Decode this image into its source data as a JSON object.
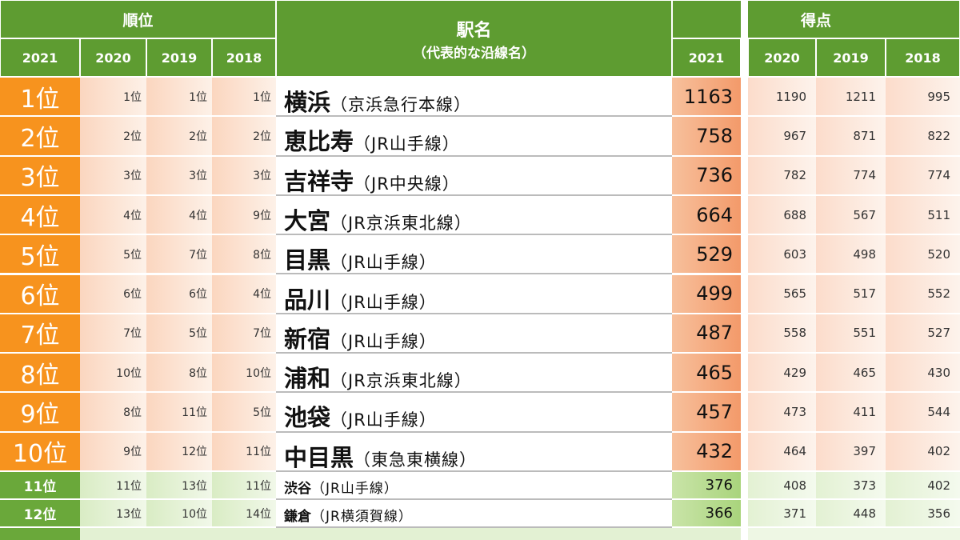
{
  "header": {
    "rank": "順位",
    "station": "駅名",
    "station_sub": "（代表的な沿線名）",
    "score": "得点",
    "years": [
      "2021",
      "2020",
      "2019",
      "2018"
    ]
  },
  "table": {
    "rows": [
      [
        "1位",
        "1位",
        "1位",
        "1位",
        "横浜",
        "（京浜急行本線）",
        "1163",
        "1190",
        "1211",
        "995"
      ],
      [
        "2位",
        "2位",
        "2位",
        "2位",
        "恵比寿",
        "（JR山手線）",
        "758",
        "967",
        "871",
        "822"
      ],
      [
        "3位",
        "3位",
        "3位",
        "3位",
        "吉祥寺",
        "（JR中央線）",
        "736",
        "782",
        "774",
        "774"
      ],
      [
        "4位",
        "4位",
        "4位",
        "9位",
        "大宮",
        "（JR京浜東北線）",
        "664",
        "688",
        "567",
        "511"
      ],
      [
        "5位",
        "5位",
        "7位",
        "8位",
        "目黒",
        "（JR山手線）",
        "529",
        "603",
        "498",
        "520"
      ],
      [
        "6位",
        "6位",
        "6位",
        "4位",
        "品川",
        "（JR山手線）",
        "499",
        "565",
        "517",
        "552"
      ],
      [
        "7位",
        "7位",
        "5位",
        "7位",
        "新宿",
        "（JR山手線）",
        "487",
        "558",
        "551",
        "527"
      ],
      [
        "8位",
        "10位",
        "8位",
        "10位",
        "浦和",
        "（JR京浜東北線）",
        "465",
        "429",
        "465",
        "430"
      ],
      [
        "9位",
        "8位",
        "11位",
        "5位",
        "池袋",
        "（JR山手線）",
        "457",
        "473",
        "411",
        "544"
      ],
      [
        "10位",
        "9位",
        "12位",
        "11位",
        "中目黒",
        "（東急東横線）",
        "432",
        "464",
        "397",
        "402"
      ],
      [
        "11位",
        "11位",
        "13位",
        "11位",
        "渋谷",
        "（JR山手線）",
        "376",
        "408",
        "373",
        "402"
      ],
      [
        "12位",
        "13位",
        "10位",
        "14位",
        "鎌倉",
        "（JR横須賀線）",
        "366",
        "371",
        "448",
        "356"
      ]
    ]
  }
}
